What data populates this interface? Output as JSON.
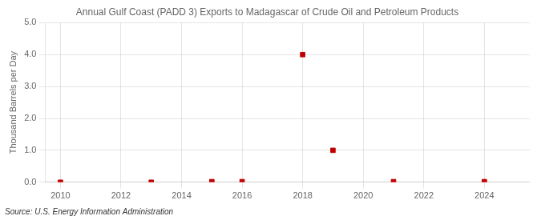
{
  "chart_data": {
    "type": "scatter",
    "title": "Annual Gulf Coast (PADD 3) Exports to Madagascar of Crude Oil and Petroleum Products",
    "ylabel": "Thousand Barrels per Day",
    "annotation": "Source: U.S. Energy Information Administration",
    "x": [
      2010,
      2013,
      2015,
      2016,
      2018,
      2019,
      2021,
      2024
    ],
    "values": [
      0.0,
      0.0,
      0.02,
      0.02,
      4.0,
      1.0,
      0.02,
      0.02
    ],
    "color": "#C00000",
    "marker": "square",
    "xlim": [
      2009.5,
      2025.5
    ],
    "ylim": [
      0.0,
      5.0
    ],
    "xticks": [
      2010,
      2012,
      2014,
      2016,
      2018,
      2020,
      2022,
      2024
    ],
    "yticks": [
      {
        "value": 0.0,
        "label": "0.0"
      },
      {
        "value": 1.0,
        "label": "1.0"
      },
      {
        "value": 2.0,
        "label": "2.0"
      },
      {
        "value": 3.0,
        "label": "3.0"
      },
      {
        "value": 4.0,
        "label": "4.0"
      },
      {
        "value": 5.0,
        "label": "5.0"
      }
    ],
    "grid": true
  }
}
